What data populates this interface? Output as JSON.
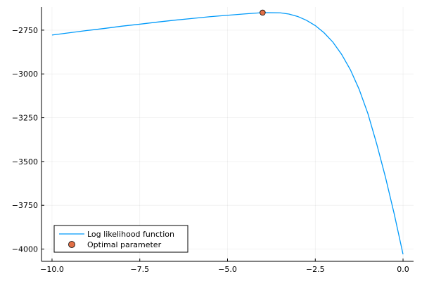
{
  "chart_data": {
    "type": "line",
    "title": "",
    "xlabel": "",
    "ylabel": "",
    "xlim": [
      -10.3,
      0.3
    ],
    "ylim": [
      -4070,
      -2618
    ],
    "xticks": [
      -10.0,
      -7.5,
      -5.0,
      -2.5,
      0.0
    ],
    "xtick_labels": [
      "−10.0",
      "−7.5",
      "−5.0",
      "−2.5",
      "0.0"
    ],
    "yticks": [
      -2750,
      -3000,
      -3250,
      -3500,
      -3750,
      -4000
    ],
    "ytick_labels": [
      "−2750",
      "−3000",
      "−3250",
      "−3500",
      "−3750",
      "−4000"
    ],
    "grid": true,
    "legend_position": "bottom-left",
    "series": [
      {
        "name": "Log likelihood function",
        "kind": "line",
        "color": "#009AFA",
        "x": [
          -10.0,
          -9.5,
          -9.0,
          -8.5,
          -8.0,
          -7.5,
          -7.0,
          -6.5,
          -6.0,
          -5.5,
          -5.0,
          -4.5,
          -4.0,
          -3.5,
          -3.25,
          -3.0,
          -2.75,
          -2.5,
          -2.25,
          -2.0,
          -1.75,
          -1.5,
          -1.25,
          -1.0,
          -0.75,
          -0.5,
          -0.25,
          0.0
        ],
        "y": [
          -2778,
          -2765,
          -2752,
          -2740,
          -2727,
          -2716,
          -2704,
          -2693,
          -2683,
          -2673,
          -2665,
          -2657,
          -2650,
          -2651,
          -2658,
          -2672,
          -2694,
          -2724,
          -2765,
          -2818,
          -2888,
          -2976,
          -3088,
          -3227,
          -3400,
          -3590,
          -3800,
          -4030
        ]
      },
      {
        "name": "Optimal parameter",
        "kind": "scatter",
        "color": "#E26F46",
        "x": [
          -4.0
        ],
        "y": [
          -2650
        ]
      }
    ]
  }
}
